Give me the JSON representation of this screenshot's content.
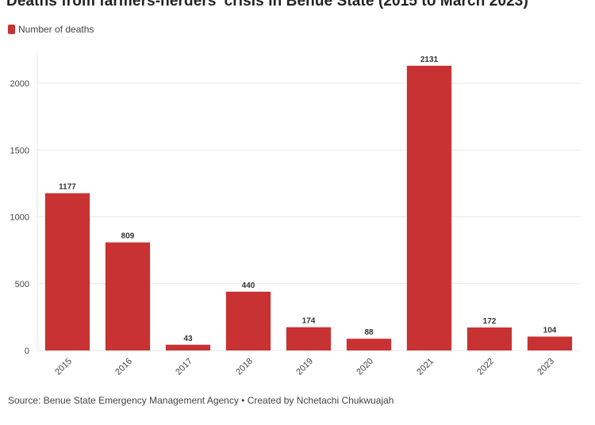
{
  "title": "Deaths from farmers-herders' crisis in Benue State (2015 to March 2023)",
  "source": "Source: Benue State Emergency Management Agency • Created by Nchetachi Chukwuajah",
  "colors": {
    "bar": "#c83232",
    "grid": "#e8e8e8",
    "axis_text": "#444444"
  },
  "chart_data": {
    "type": "bar",
    "title": "Deaths from farmers-herders' crisis in Benue State (2015 to March 2023)",
    "xlabel": "",
    "ylabel": "",
    "categories": [
      "2015",
      "2016",
      "2017",
      "2018",
      "2019",
      "2020",
      "2021",
      "2022",
      "2023"
    ],
    "series": [
      {
        "name": "Number of deaths",
        "values": [
          1177,
          809,
          43,
          440,
          174,
          88,
          2131,
          172,
          104
        ]
      }
    ],
    "ylim": [
      0,
      2200
    ],
    "yticks": [
      0,
      500,
      1000,
      1500,
      2000
    ],
    "grid": true,
    "legend": "top-left",
    "data_labels": true
  }
}
